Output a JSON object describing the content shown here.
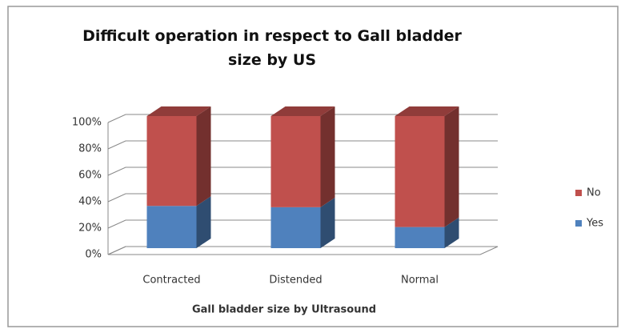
{
  "chart_data": {
    "type": "bar3d_stacked_percent",
    "title": "Difficult operation in respect to Gall bladder size by US",
    "x_label": "Gall bladder size by Ultrasound",
    "categories": [
      "Contracted",
      "Distended",
      "Normal"
    ],
    "series": [
      {
        "name": "Yes",
        "color": "#4f81bd",
        "values": [
          32,
          31,
          16
        ]
      },
      {
        "name": "No",
        "color": "#c0504d",
        "values": [
          68,
          69,
          84
        ]
      }
    ],
    "ylim": [
      0,
      100
    ],
    "yticks": [
      {
        "value": 0,
        "label": "0%"
      },
      {
        "value": 20,
        "label": "20%"
      },
      {
        "value": 40,
        "label": "40%"
      },
      {
        "value": 60,
        "label": "60%"
      },
      {
        "value": 80,
        "label": "80%"
      },
      {
        "value": 100,
        "label": "100%"
      }
    ],
    "grid": true,
    "legend": "right"
  }
}
